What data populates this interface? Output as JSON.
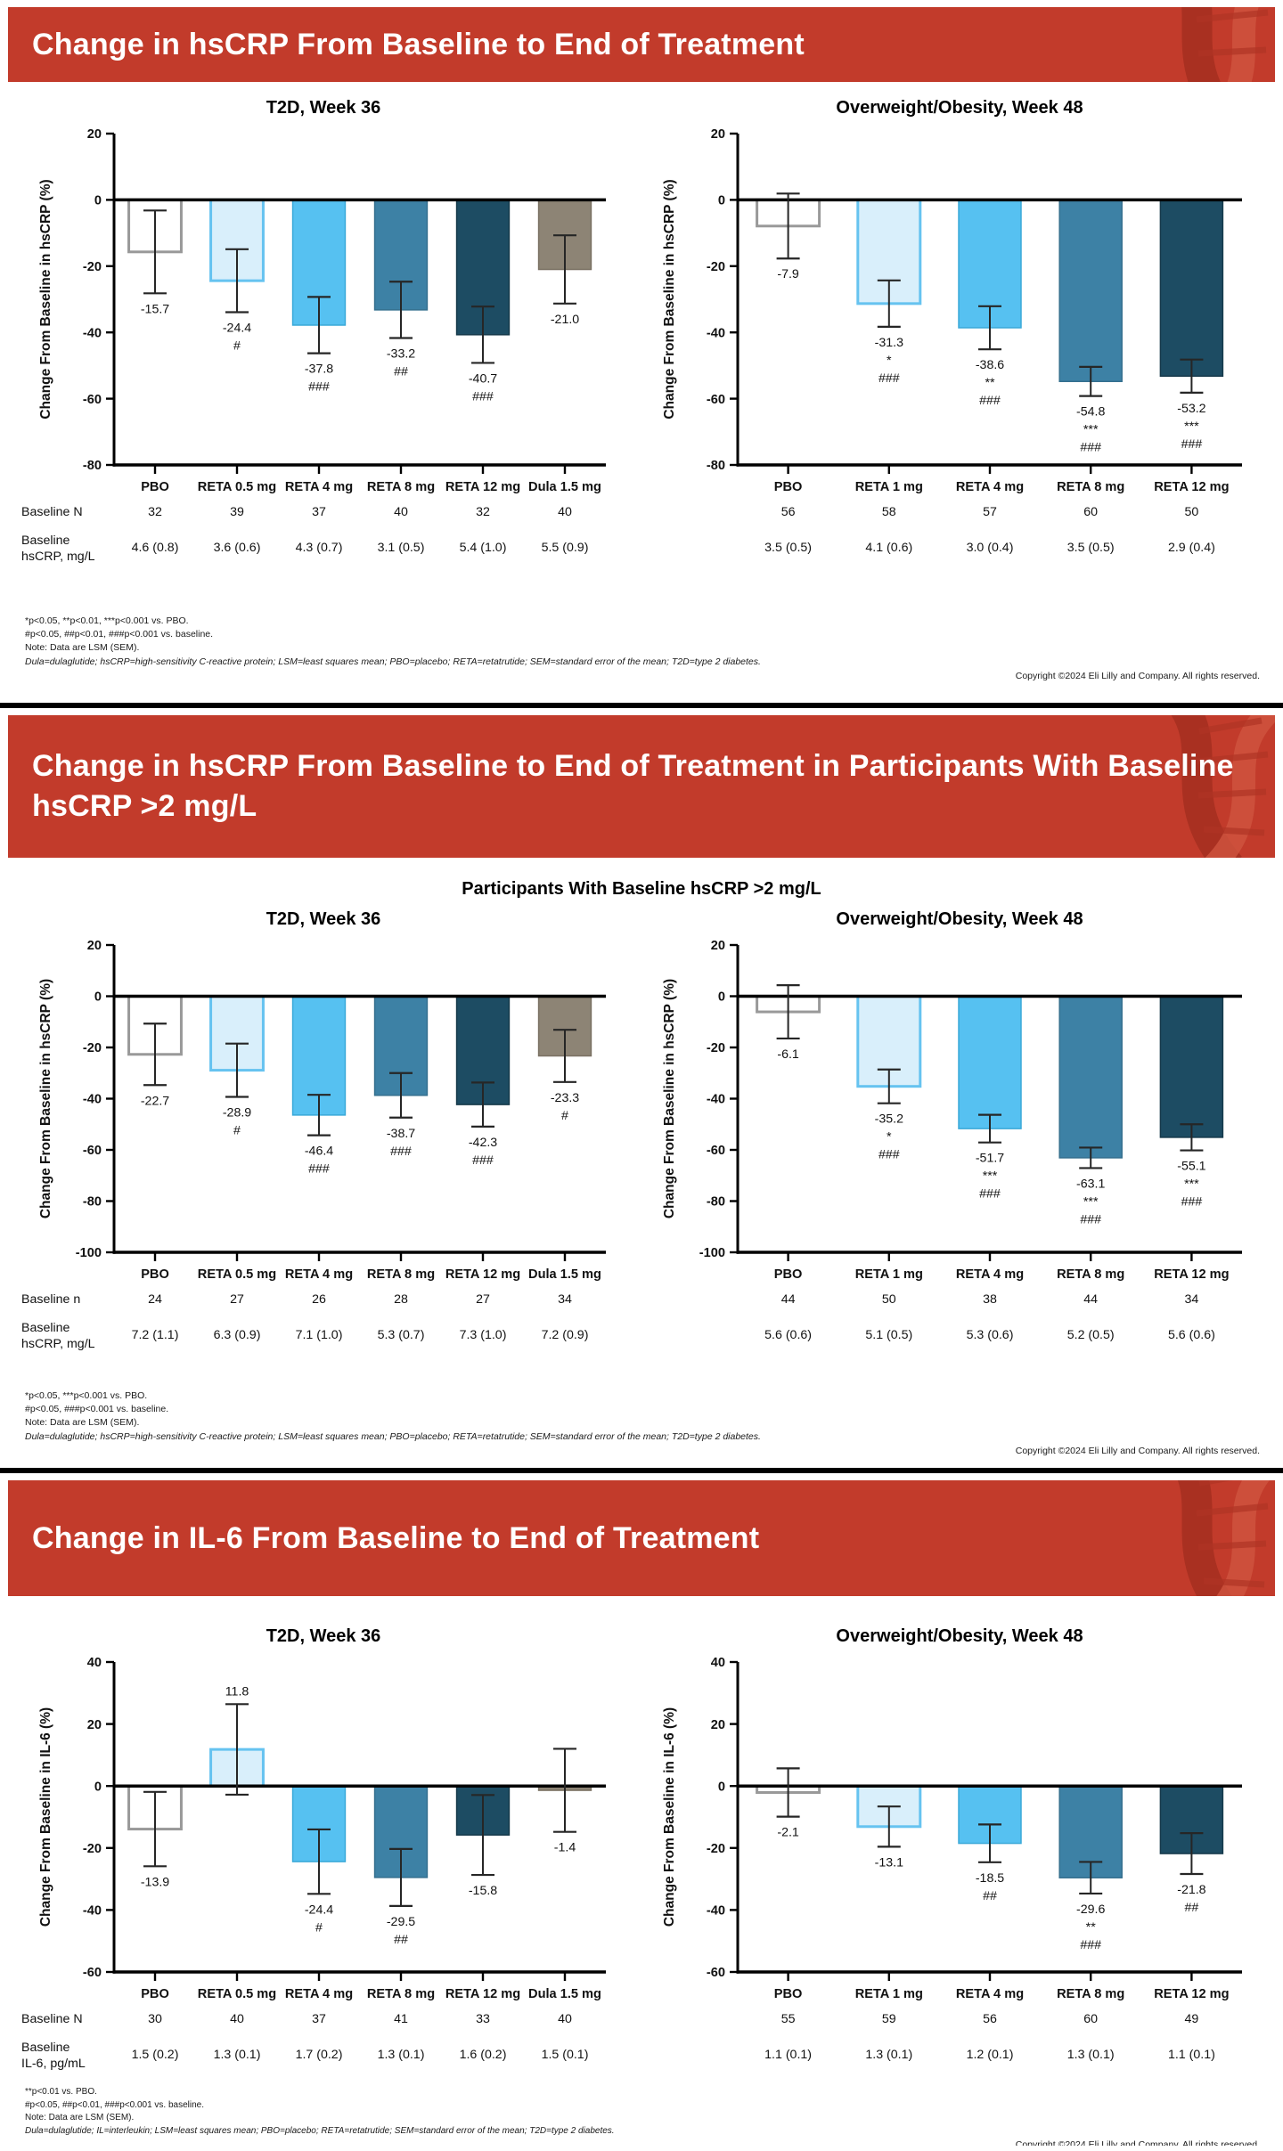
{
  "copyright": "Copyright ©2024 Eli Lilly and Company. All rights reserved.",
  "palette": {
    "banner_red": "#c23b2b",
    "banner_red_dark": "#a52f20",
    "banner_red_light": "#d05540",
    "pbo": {
      "fill": "#ffffff",
      "stroke": "#999999",
      "sw": 3
    },
    "reta_light": {
      "fill": "#d9effb",
      "stroke": "#66c3f0",
      "sw": 3
    },
    "reta_bright": {
      "fill": "#56c1f1",
      "stroke": "#3aa9d8",
      "sw": 1.5
    },
    "reta_mid": {
      "fill": "#3d81a5",
      "stroke": "#346f8e",
      "sw": 1.5
    },
    "reta_dark": {
      "fill": "#1d4c63",
      "stroke": "#16394a",
      "sw": 1.5
    },
    "dula": {
      "fill": "#8d8475",
      "stroke": "#7a7163",
      "sw": 1.5
    },
    "error_bar": "#262626",
    "axis": "#000000"
  },
  "slides": [
    {
      "banner": "Change in hsCRP From Baseline to End of Treatment",
      "footnotes": [
        "*p<0.05, **p<0.01, ***p<0.001 vs. PBO.",
        "#p<0.05, ##p<0.01, ###p<0.001 vs. baseline.",
        "Note: Data are LSM (SEM).",
        "Dula=dulaglutide; hsCRP=high-sensitivity C-reactive protein; LSM=least squares mean; PBO=placebo; RETA=retatrutide; SEM=standard error of the mean; T2D=type 2 diabetes."
      ]
    },
    {
      "banner": "Change in hsCRP From Baseline to End of Treatment in Participants With Baseline hsCRP >2 mg/L",
      "subtitle": "Participants With Baseline hsCRP >2 mg/L",
      "footnotes": [
        "*p<0.05, ***p<0.001 vs. PBO.",
        "#p<0.05, ###p<0.001 vs. baseline.",
        "Note: Data are LSM (SEM).",
        "Dula=dulaglutide; hsCRP=high-sensitivity C-reactive protein; LSM=least squares mean; PBO=placebo; RETA=retatrutide; SEM=standard error of the mean; T2D=type 2 diabetes."
      ]
    },
    {
      "banner": "Change in IL-6 From Baseline to End of Treatment",
      "footnotes": [
        "**p<0.01 vs. PBO.",
        "#p<0.05, ##p<0.01, ###p<0.001 vs. baseline.",
        "Note: Data are LSM (SEM).",
        "Dula=dulaglutide; IL=interleukin; LSM=least squares mean; PBO=placebo; RETA=retatrutide; SEM=standard error of the mean; T2D=type 2 diabetes."
      ]
    }
  ],
  "chart_data": [
    {
      "type": "bar",
      "title": "T2D, Week 36",
      "ylabel": "Change From Baseline in hsCRP (%)",
      "ylim": [
        -80,
        20
      ],
      "yticks": [
        20,
        0,
        -20,
        -40,
        -60,
        -80
      ],
      "grid": false,
      "groups": [
        "PBO",
        "RETA 0.5 mg",
        "RETA 4 mg",
        "RETA 8 mg",
        "RETA 12 mg",
        "Dula 1.5 mg"
      ],
      "values": [
        -15.7,
        -24.4,
        -37.8,
        -33.2,
        -40.7,
        -21.0
      ],
      "sem_est": [
        12.5,
        9.5,
        8.5,
        8.5,
        8.5,
        10.3
      ],
      "sig": [
        [],
        [
          "#"
        ],
        [
          "###"
        ],
        [
          "##"
        ],
        [
          "###"
        ],
        []
      ],
      "bar_styles": [
        "pbo",
        "reta_light",
        "reta_bright",
        "reta_mid",
        "reta_dark",
        "dula"
      ],
      "show_row_labels": true,
      "table_rows": [
        {
          "label_lines": [
            "Baseline N"
          ],
          "cells": [
            "32",
            "39",
            "37",
            "40",
            "32",
            "40"
          ]
        },
        {
          "label_lines": [
            "Baseline",
            "hsCRP, mg/L"
          ],
          "cells": [
            "4.6 (0.8)",
            "3.6 (0.6)",
            "4.3 (0.7)",
            "3.1 (0.5)",
            "5.4 (1.0)",
            "5.5 (0.9)"
          ]
        }
      ]
    },
    {
      "type": "bar",
      "title": "Overweight/Obesity, Week 48",
      "ylabel": "Change From Baseline in hsCRP (%)",
      "ylim": [
        -80,
        20
      ],
      "yticks": [
        20,
        0,
        -20,
        -40,
        -60,
        -80
      ],
      "grid": false,
      "groups": [
        "PBO",
        "RETA 1 mg",
        "RETA 4 mg",
        "RETA 8 mg",
        "RETA 12 mg"
      ],
      "values": [
        -7.9,
        -31.3,
        -38.6,
        -54.8,
        -53.2
      ],
      "sem_est": [
        9.8,
        7.0,
        6.5,
        4.4,
        5.0
      ],
      "sig": [
        [],
        [
          "*",
          "###"
        ],
        [
          "**",
          "###"
        ],
        [
          "***",
          "###"
        ],
        [
          "***",
          "###"
        ]
      ],
      "bar_styles": [
        "pbo",
        "reta_light",
        "reta_bright",
        "reta_mid",
        "reta_dark"
      ],
      "show_row_labels": false,
      "table_rows": [
        {
          "label_lines": [],
          "cells": [
            "56",
            "58",
            "57",
            "60",
            "50"
          ]
        },
        {
          "label_lines": [],
          "cells": [
            "3.5 (0.5)",
            "4.1 (0.6)",
            "3.0 (0.4)",
            "3.5 (0.5)",
            "2.9 (0.4)"
          ]
        }
      ]
    },
    {
      "type": "bar",
      "title": "T2D, Week 36",
      "ylabel": "Change From Baseline in hsCRP (%)",
      "ylim": [
        -100,
        20
      ],
      "yticks": [
        20,
        0,
        -20,
        -40,
        -60,
        -80,
        -100
      ],
      "grid": false,
      "groups": [
        "PBO",
        "RETA 0.5 mg",
        "RETA 4 mg",
        "RETA 8 mg",
        "RETA 12 mg",
        "Dula 1.5 mg"
      ],
      "values": [
        -22.7,
        -28.9,
        -46.4,
        -38.7,
        -42.3,
        -23.3
      ],
      "sem_est": [
        12.0,
        10.4,
        7.9,
        8.7,
        8.6,
        10.2
      ],
      "sig": [
        [],
        [
          "#"
        ],
        [
          "###"
        ],
        [
          "###"
        ],
        [
          "###"
        ],
        [
          "#"
        ]
      ],
      "bar_styles": [
        "pbo",
        "reta_light",
        "reta_bright",
        "reta_mid",
        "reta_dark",
        "dula"
      ],
      "show_row_labels": true,
      "table_rows": [
        {
          "label_lines": [
            "Baseline n"
          ],
          "cells": [
            "24",
            "27",
            "26",
            "28",
            "27",
            "34"
          ]
        },
        {
          "label_lines": [
            "Baseline",
            "hsCRP, mg/L"
          ],
          "cells": [
            "7.2 (1.1)",
            "6.3 (0.9)",
            "7.1 (1.0)",
            "5.3 (0.7)",
            "7.3 (1.0)",
            "7.2 (0.9)"
          ]
        }
      ]
    },
    {
      "type": "bar",
      "title": "Overweight/Obesity, Week 48",
      "ylabel": "Change From Baseline in hsCRP (%)",
      "ylim": [
        -100,
        20
      ],
      "yticks": [
        20,
        0,
        -20,
        -40,
        -60,
        -80,
        -100
      ],
      "grid": false,
      "groups": [
        "PBO",
        "RETA 1 mg",
        "RETA 4 mg",
        "RETA 8 mg",
        "RETA 12 mg"
      ],
      "values": [
        -6.1,
        -35.2,
        -51.7,
        -63.1,
        -55.1
      ],
      "sem_est": [
        10.4,
        6.6,
        5.4,
        4.0,
        5.1
      ],
      "sig": [
        [],
        [
          "*",
          "###"
        ],
        [
          "***",
          "###"
        ],
        [
          "***",
          "###"
        ],
        [
          "***",
          "###"
        ]
      ],
      "bar_styles": [
        "pbo",
        "reta_light",
        "reta_bright",
        "reta_mid",
        "reta_dark"
      ],
      "show_row_labels": false,
      "table_rows": [
        {
          "label_lines": [],
          "cells": [
            "44",
            "50",
            "38",
            "44",
            "34"
          ]
        },
        {
          "label_lines": [],
          "cells": [
            "5.6 (0.6)",
            "5.1 (0.5)",
            "5.3 (0.6)",
            "5.2 (0.5)",
            "5.6 (0.6)"
          ]
        }
      ]
    },
    {
      "type": "bar",
      "title": "T2D, Week 36",
      "ylabel": "Change From Baseline in IL-6 (%)",
      "ylim": [
        -60,
        40
      ],
      "yticks": [
        40,
        20,
        0,
        -20,
        -40,
        -60
      ],
      "grid": false,
      "groups": [
        "PBO",
        "RETA 0.5 mg",
        "RETA 4 mg",
        "RETA 8 mg",
        "RETA 12 mg",
        "Dula 1.5 mg"
      ],
      "values": [
        -13.9,
        11.8,
        -24.4,
        -29.5,
        -15.8,
        -1.4
      ],
      "sem_est": [
        12.0,
        14.6,
        10.4,
        9.2,
        12.9,
        13.4
      ],
      "sig": [
        [],
        [],
        [
          "#"
        ],
        [
          "##"
        ],
        [],
        []
      ],
      "bar_styles": [
        "pbo",
        "reta_light",
        "reta_bright",
        "reta_mid",
        "reta_dark",
        "dula"
      ],
      "show_row_labels": true,
      "table_rows": [
        {
          "label_lines": [
            "Baseline N"
          ],
          "cells": [
            "30",
            "40",
            "37",
            "41",
            "33",
            "40"
          ]
        },
        {
          "label_lines": [
            "Baseline",
            "IL-6, pg/mL"
          ],
          "cells": [
            "1.5 (0.2)",
            "1.3 (0.1)",
            "1.7 (0.2)",
            "1.3 (0.1)",
            "1.6 (0.2)",
            "1.5 (0.1)"
          ]
        }
      ]
    },
    {
      "type": "bar",
      "title": "Overweight/Obesity, Week 48",
      "ylabel": "Change From Baseline in IL-6 (%)",
      "ylim": [
        -60,
        40
      ],
      "yticks": [
        40,
        20,
        0,
        -20,
        -40,
        -60
      ],
      "grid": false,
      "groups": [
        "PBO",
        "RETA 1 mg",
        "RETA 4 mg",
        "RETA 8 mg",
        "RETA 12 mg"
      ],
      "values": [
        -2.1,
        -13.1,
        -18.5,
        -29.6,
        -21.8
      ],
      "sem_est": [
        7.8,
        6.5,
        6.1,
        5.1,
        6.6
      ],
      "sig": [
        [],
        [],
        [
          "##"
        ],
        [
          "**",
          "###"
        ],
        [
          "##"
        ]
      ],
      "bar_styles": [
        "pbo",
        "reta_light",
        "reta_bright",
        "reta_mid",
        "reta_dark"
      ],
      "show_row_labels": false,
      "table_rows": [
        {
          "label_lines": [],
          "cells": [
            "55",
            "59",
            "56",
            "60",
            "49"
          ]
        },
        {
          "label_lines": [],
          "cells": [
            "1.1 (0.1)",
            "1.3 (0.1)",
            "1.2 (0.1)",
            "1.3 (0.1)",
            "1.1 (0.1)"
          ]
        }
      ]
    }
  ]
}
